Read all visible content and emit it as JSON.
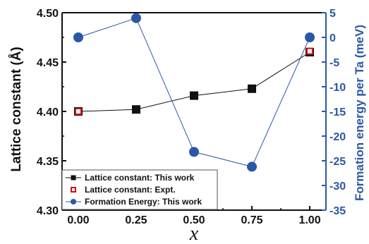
{
  "chart_data": {
    "type": "line",
    "xlabel": "x",
    "ylabel_left": "Lattice constant (Å)",
    "ylabel_right": "Formation energy per Ta (meV)",
    "xlim": [
      -0.07,
      1.07
    ],
    "ylim_left": [
      4.3,
      4.5
    ],
    "ylim_right": [
      -35,
      5
    ],
    "x_ticks": [
      "0.00",
      "0.25",
      "0.50",
      "0.75",
      "1.00"
    ],
    "y_left_ticks": [
      "4.30",
      "4.35",
      "4.40",
      "4.45",
      "4.50"
    ],
    "y_right_ticks": [
      "5",
      "0",
      "-5",
      "-10",
      "-15",
      "-20",
      "-25",
      "-30",
      "-35"
    ],
    "grid": false,
    "legend_position": "bottom-left",
    "series": [
      {
        "name": "Lattice constant: This work",
        "axis": "left",
        "marker": "filled-square",
        "color": "#111111",
        "x": [
          0.0,
          0.25,
          0.5,
          0.75,
          1.0
        ],
        "y": [
          4.4,
          4.402,
          4.416,
          4.423,
          4.46
        ]
      },
      {
        "name": "Lattice constant: Expt.",
        "axis": "left",
        "marker": "open-square",
        "color": "#d01010",
        "x": [
          0.0,
          1.0
        ],
        "y": [
          4.4,
          4.461
        ]
      },
      {
        "name": "Formation Energy: This work",
        "axis": "right",
        "marker": "circle",
        "color": "#2b57a7",
        "x": [
          0.0,
          0.25,
          0.5,
          0.75,
          1.0
        ],
        "y": [
          0.0,
          3.9,
          -23.2,
          -26.2,
          0.0
        ]
      }
    ]
  }
}
